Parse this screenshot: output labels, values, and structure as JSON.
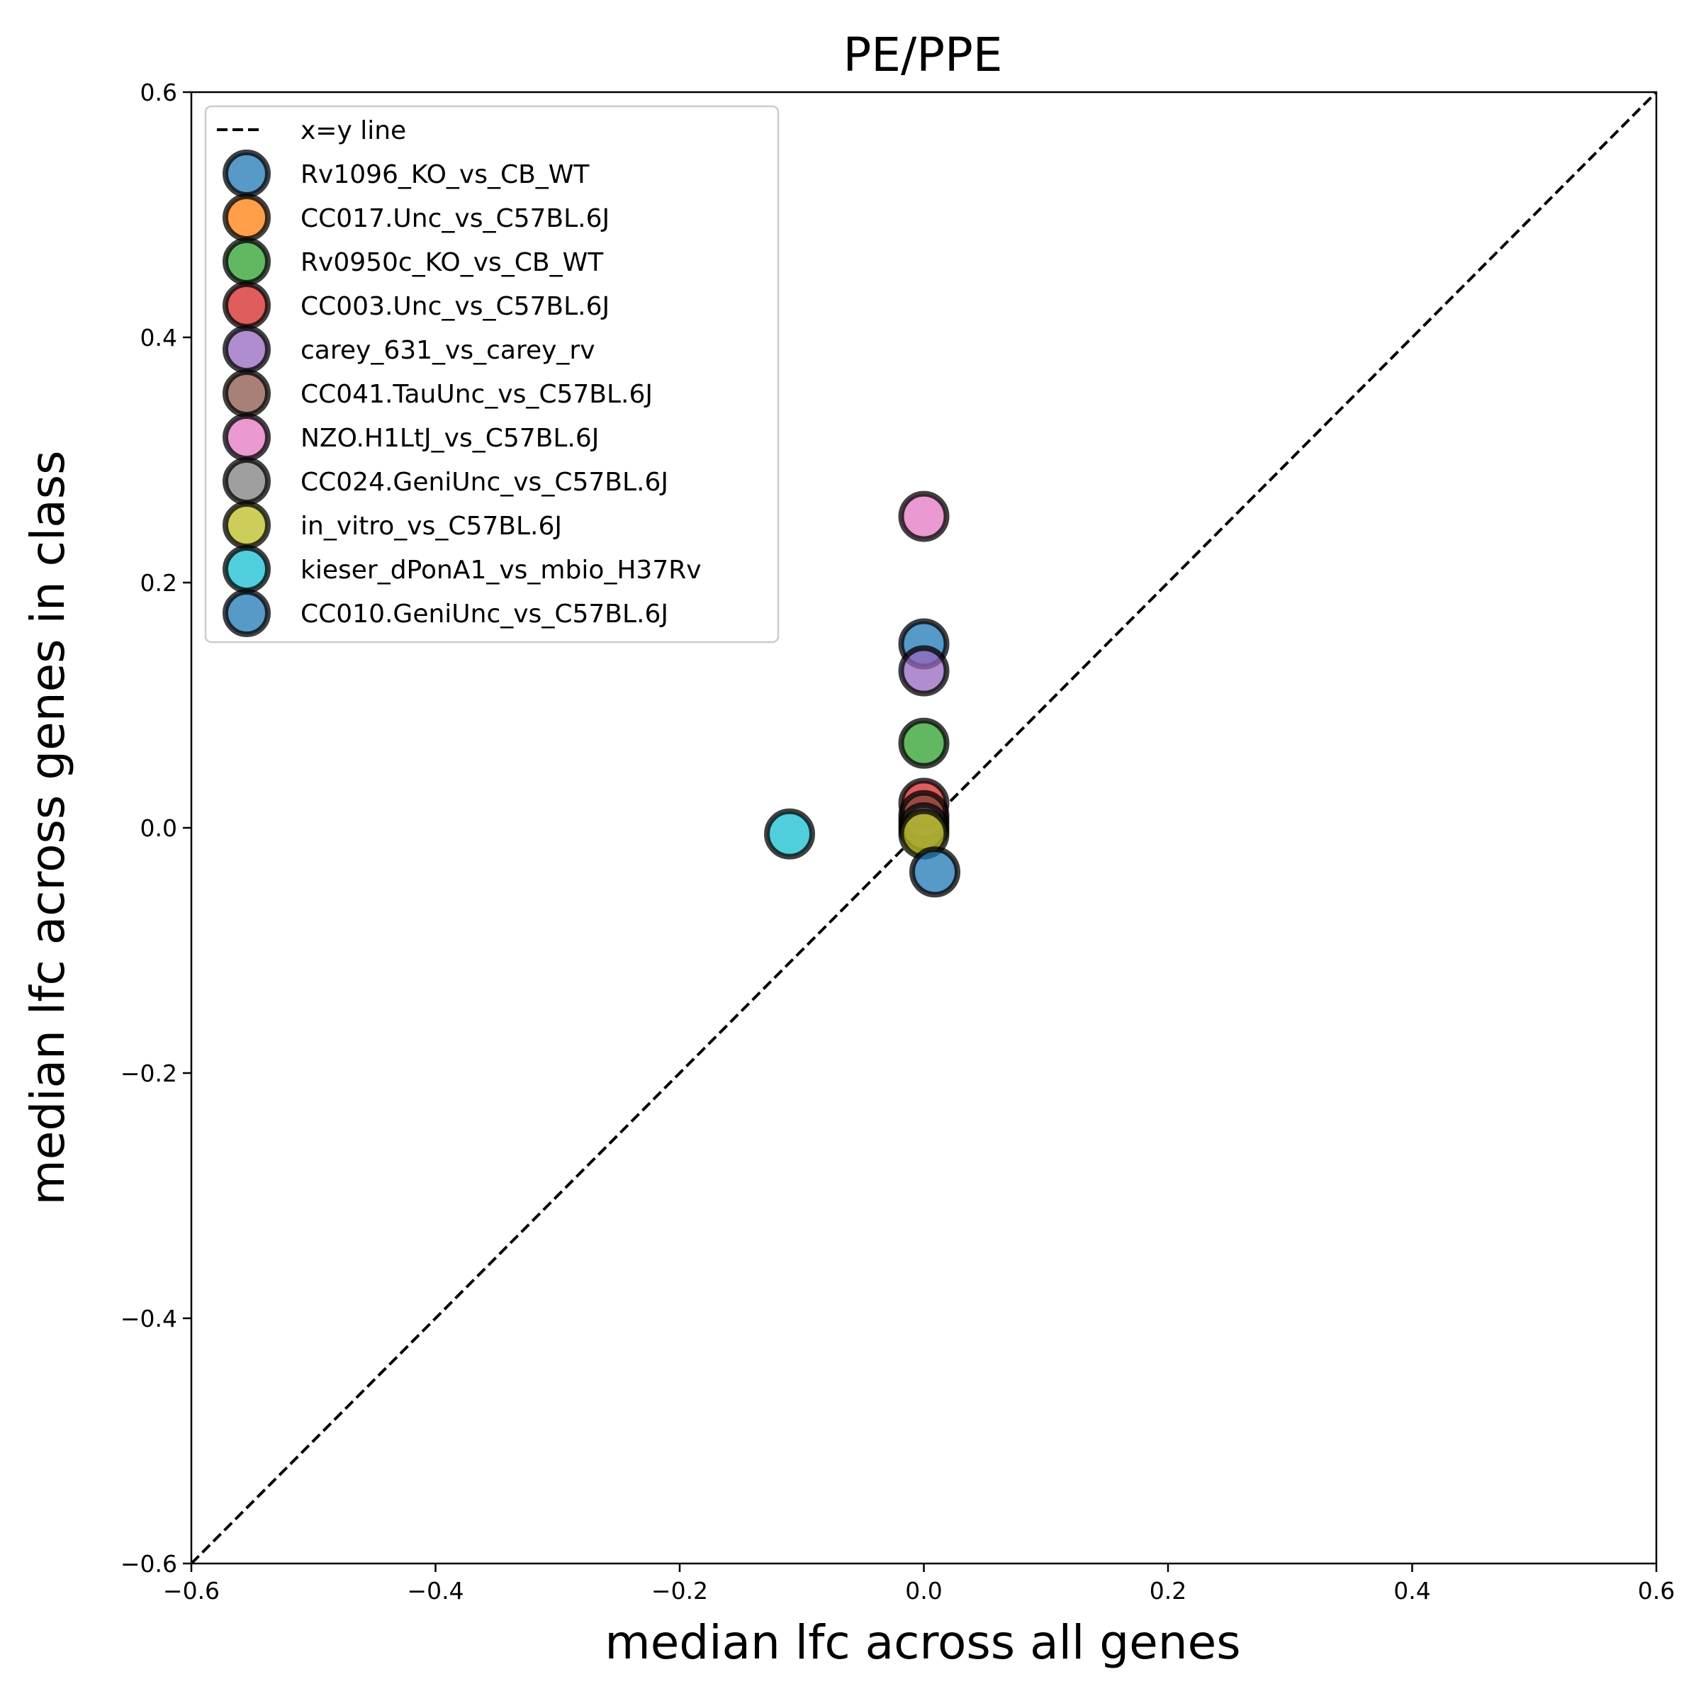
{
  "chart_data": {
    "type": "scatter",
    "title": "PE/PPE",
    "xlabel": "median lfc across all genes",
    "ylabel": "median lfc across genes in class",
    "xlim": [
      -0.6,
      0.6
    ],
    "ylim": [
      -0.6,
      0.6
    ],
    "xticks": [
      -0.6,
      -0.4,
      -0.2,
      0.0,
      0.2,
      0.4,
      0.6
    ],
    "yticks": [
      -0.6,
      -0.4,
      -0.2,
      0.0,
      0.2,
      0.4,
      0.6
    ],
    "xtick_labels": [
      "−0.6",
      "−0.4",
      "−0.2",
      "0.0",
      "0.2",
      "0.4",
      "0.6"
    ],
    "ytick_labels": [
      "−0.6",
      "−0.4",
      "−0.2",
      "0.0",
      "0.2",
      "0.4",
      "0.6"
    ],
    "grid": false,
    "legend_position": "upper-left",
    "reference_line": {
      "label": "x=y line",
      "style": "dashed",
      "color": "#000000"
    },
    "series": [
      {
        "name": "Rv1096_KO_vs_CB_WT",
        "color": "#1f77b4",
        "x": [
          0.0
        ],
        "y": [
          0.15
        ]
      },
      {
        "name": "CC017.Unc_vs_C57BL.6J",
        "color": "#ff7f0e",
        "x": [
          0.0
        ],
        "y": [
          0.005
        ]
      },
      {
        "name": "Rv0950c_KO_vs_CB_WT",
        "color": "#2ca02c",
        "x": [
          0.0
        ],
        "y": [
          0.069
        ]
      },
      {
        "name": "CC003.Unc_vs_C57BL.6J",
        "color": "#d62728",
        "x": [
          0.0
        ],
        "y": [
          0.02
        ]
      },
      {
        "name": "carey_631_vs_carey_rv",
        "color": "#9467bd",
        "x": [
          0.0
        ],
        "y": [
          0.128
        ]
      },
      {
        "name": "CC041.TauUnc_vs_C57BL.6J",
        "color": "#8c564b",
        "x": [
          0.0
        ],
        "y": [
          0.01
        ]
      },
      {
        "name": "NZO.H1LtJ_vs_C57BL.6J",
        "color": "#e377c2",
        "x": [
          0.0
        ],
        "y": [
          0.254
        ]
      },
      {
        "name": "CC024.GeniUnc_vs_C57BL.6J",
        "color": "#7f7f7f",
        "x": [
          0.0
        ],
        "y": [
          0.0
        ]
      },
      {
        "name": "in_vitro_vs_C57BL.6J",
        "color": "#bcbd22",
        "x": [
          0.0
        ],
        "y": [
          -0.005
        ]
      },
      {
        "name": "kieser_dPonA1_vs_mbio_H37Rv",
        "color": "#17becf",
        "x": [
          -0.11
        ],
        "y": [
          -0.005
        ]
      },
      {
        "name": "CC010.GeniUnc_vs_C57BL.6J",
        "color": "#1f77b4",
        "x": [
          0.009
        ],
        "y": [
          -0.036
        ]
      }
    ]
  }
}
